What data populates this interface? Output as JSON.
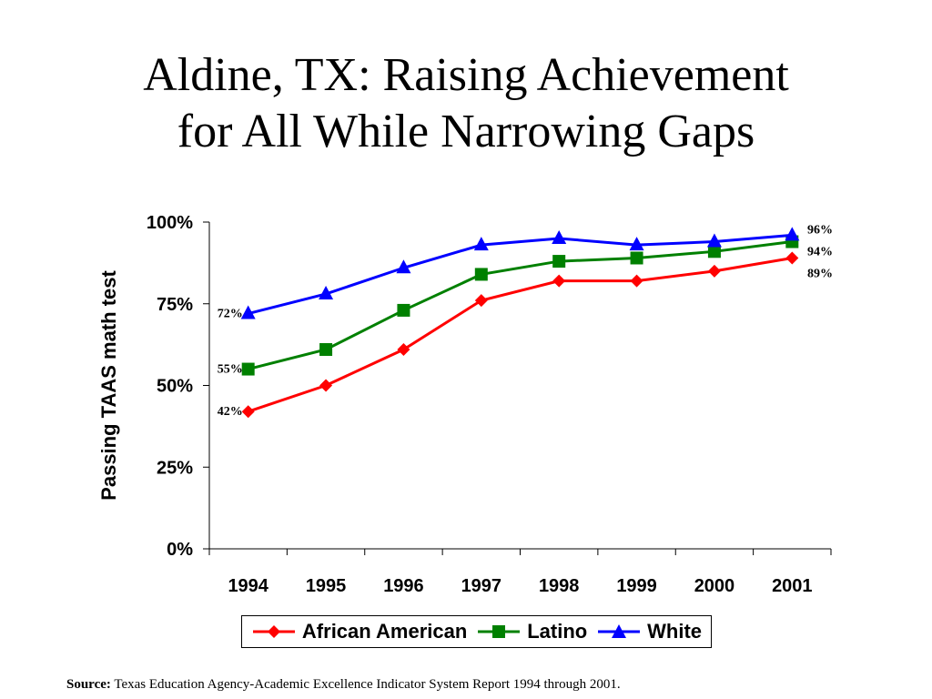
{
  "slide": {
    "title_line1": "Aldine, TX:  Raising Achievement",
    "title_line2": "for All While Narrowing Gaps",
    "source_label": "Source:",
    "source_text": "Texas Education Agency-Academic Excellence Indicator System Report 1994 through 2001."
  },
  "chart_data": {
    "type": "line",
    "title": "",
    "xlabel": "",
    "ylabel": "Passing TAAS math test",
    "ylim": [
      0,
      100
    ],
    "yticks": [
      "0%",
      "25%",
      "50%",
      "75%",
      "100%"
    ],
    "categories": [
      "1994",
      "1995",
      "1996",
      "1997",
      "1998",
      "1999",
      "2000",
      "2001"
    ],
    "series": [
      {
        "name": "African American",
        "color": "#ff0000",
        "marker": "diamond",
        "values": [
          42,
          50,
          61,
          76,
          82,
          82,
          85,
          89
        ],
        "labels": {
          "start": "42%",
          "end": "89%"
        }
      },
      {
        "name": "Latino",
        "color": "#008000",
        "marker": "square",
        "values": [
          55,
          61,
          73,
          84,
          88,
          89,
          91,
          94
        ],
        "labels": {
          "start": "55%",
          "end": "94%"
        }
      },
      {
        "name": "White",
        "color": "#0000ff",
        "marker": "triangle",
        "values": [
          72,
          78,
          86,
          93,
          95,
          93,
          94,
          96
        ],
        "labels": {
          "start": "72%",
          "end": "96%"
        }
      }
    ],
    "grid": false,
    "legend_position": "bottom"
  }
}
